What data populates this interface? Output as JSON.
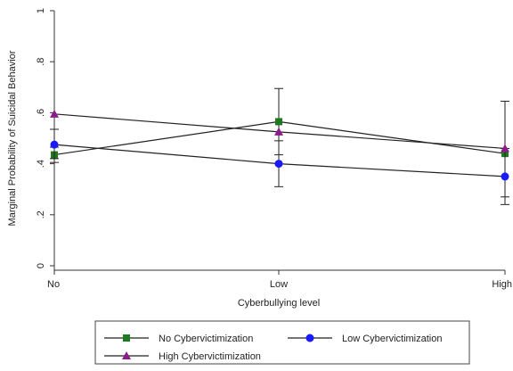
{
  "chart_data": {
    "type": "line",
    "title": "",
    "xlabel": "Cyberbullying level",
    "ylabel": "Marginal Probability of Suicidal Behavior",
    "categories": [
      "No",
      "Low",
      "High"
    ],
    "ylim": [
      0,
      1
    ],
    "yticks": [
      0,
      0.2,
      0.4,
      0.6,
      0.8,
      1
    ],
    "ytick_labels": [
      "0",
      ".2",
      ".4",
      ".6",
      ".8",
      "1"
    ],
    "grid": false,
    "legend_position": "bottom",
    "series": [
      {
        "name": "No Cybervictimization",
        "marker": "square",
        "marker_color": "#1f7a1f",
        "values": [
          0.435,
          0.565,
          0.44
        ],
        "ci_low": [
          0.405,
          0.435,
          0.27
        ],
        "ci_high": [
          0.465,
          0.695,
          0.645
        ]
      },
      {
        "name": "Low Cybervictimization",
        "marker": "circle",
        "marker_color": "#1a1aff",
        "values": [
          0.475,
          0.4,
          0.35
        ],
        "ci_low": [
          0.42,
          0.31,
          0.24
        ],
        "ci_high": [
          0.535,
          0.49,
          0.46
        ]
      },
      {
        "name": "High Cybervictimization",
        "marker": "triangle",
        "marker_color": "#8b1c8b",
        "values": [
          0.595,
          0.525,
          0.46
        ],
        "ci_low": [
          0.595,
          0.525,
          0.46
        ],
        "ci_high": [
          0.595,
          0.525,
          0.46
        ]
      }
    ]
  }
}
